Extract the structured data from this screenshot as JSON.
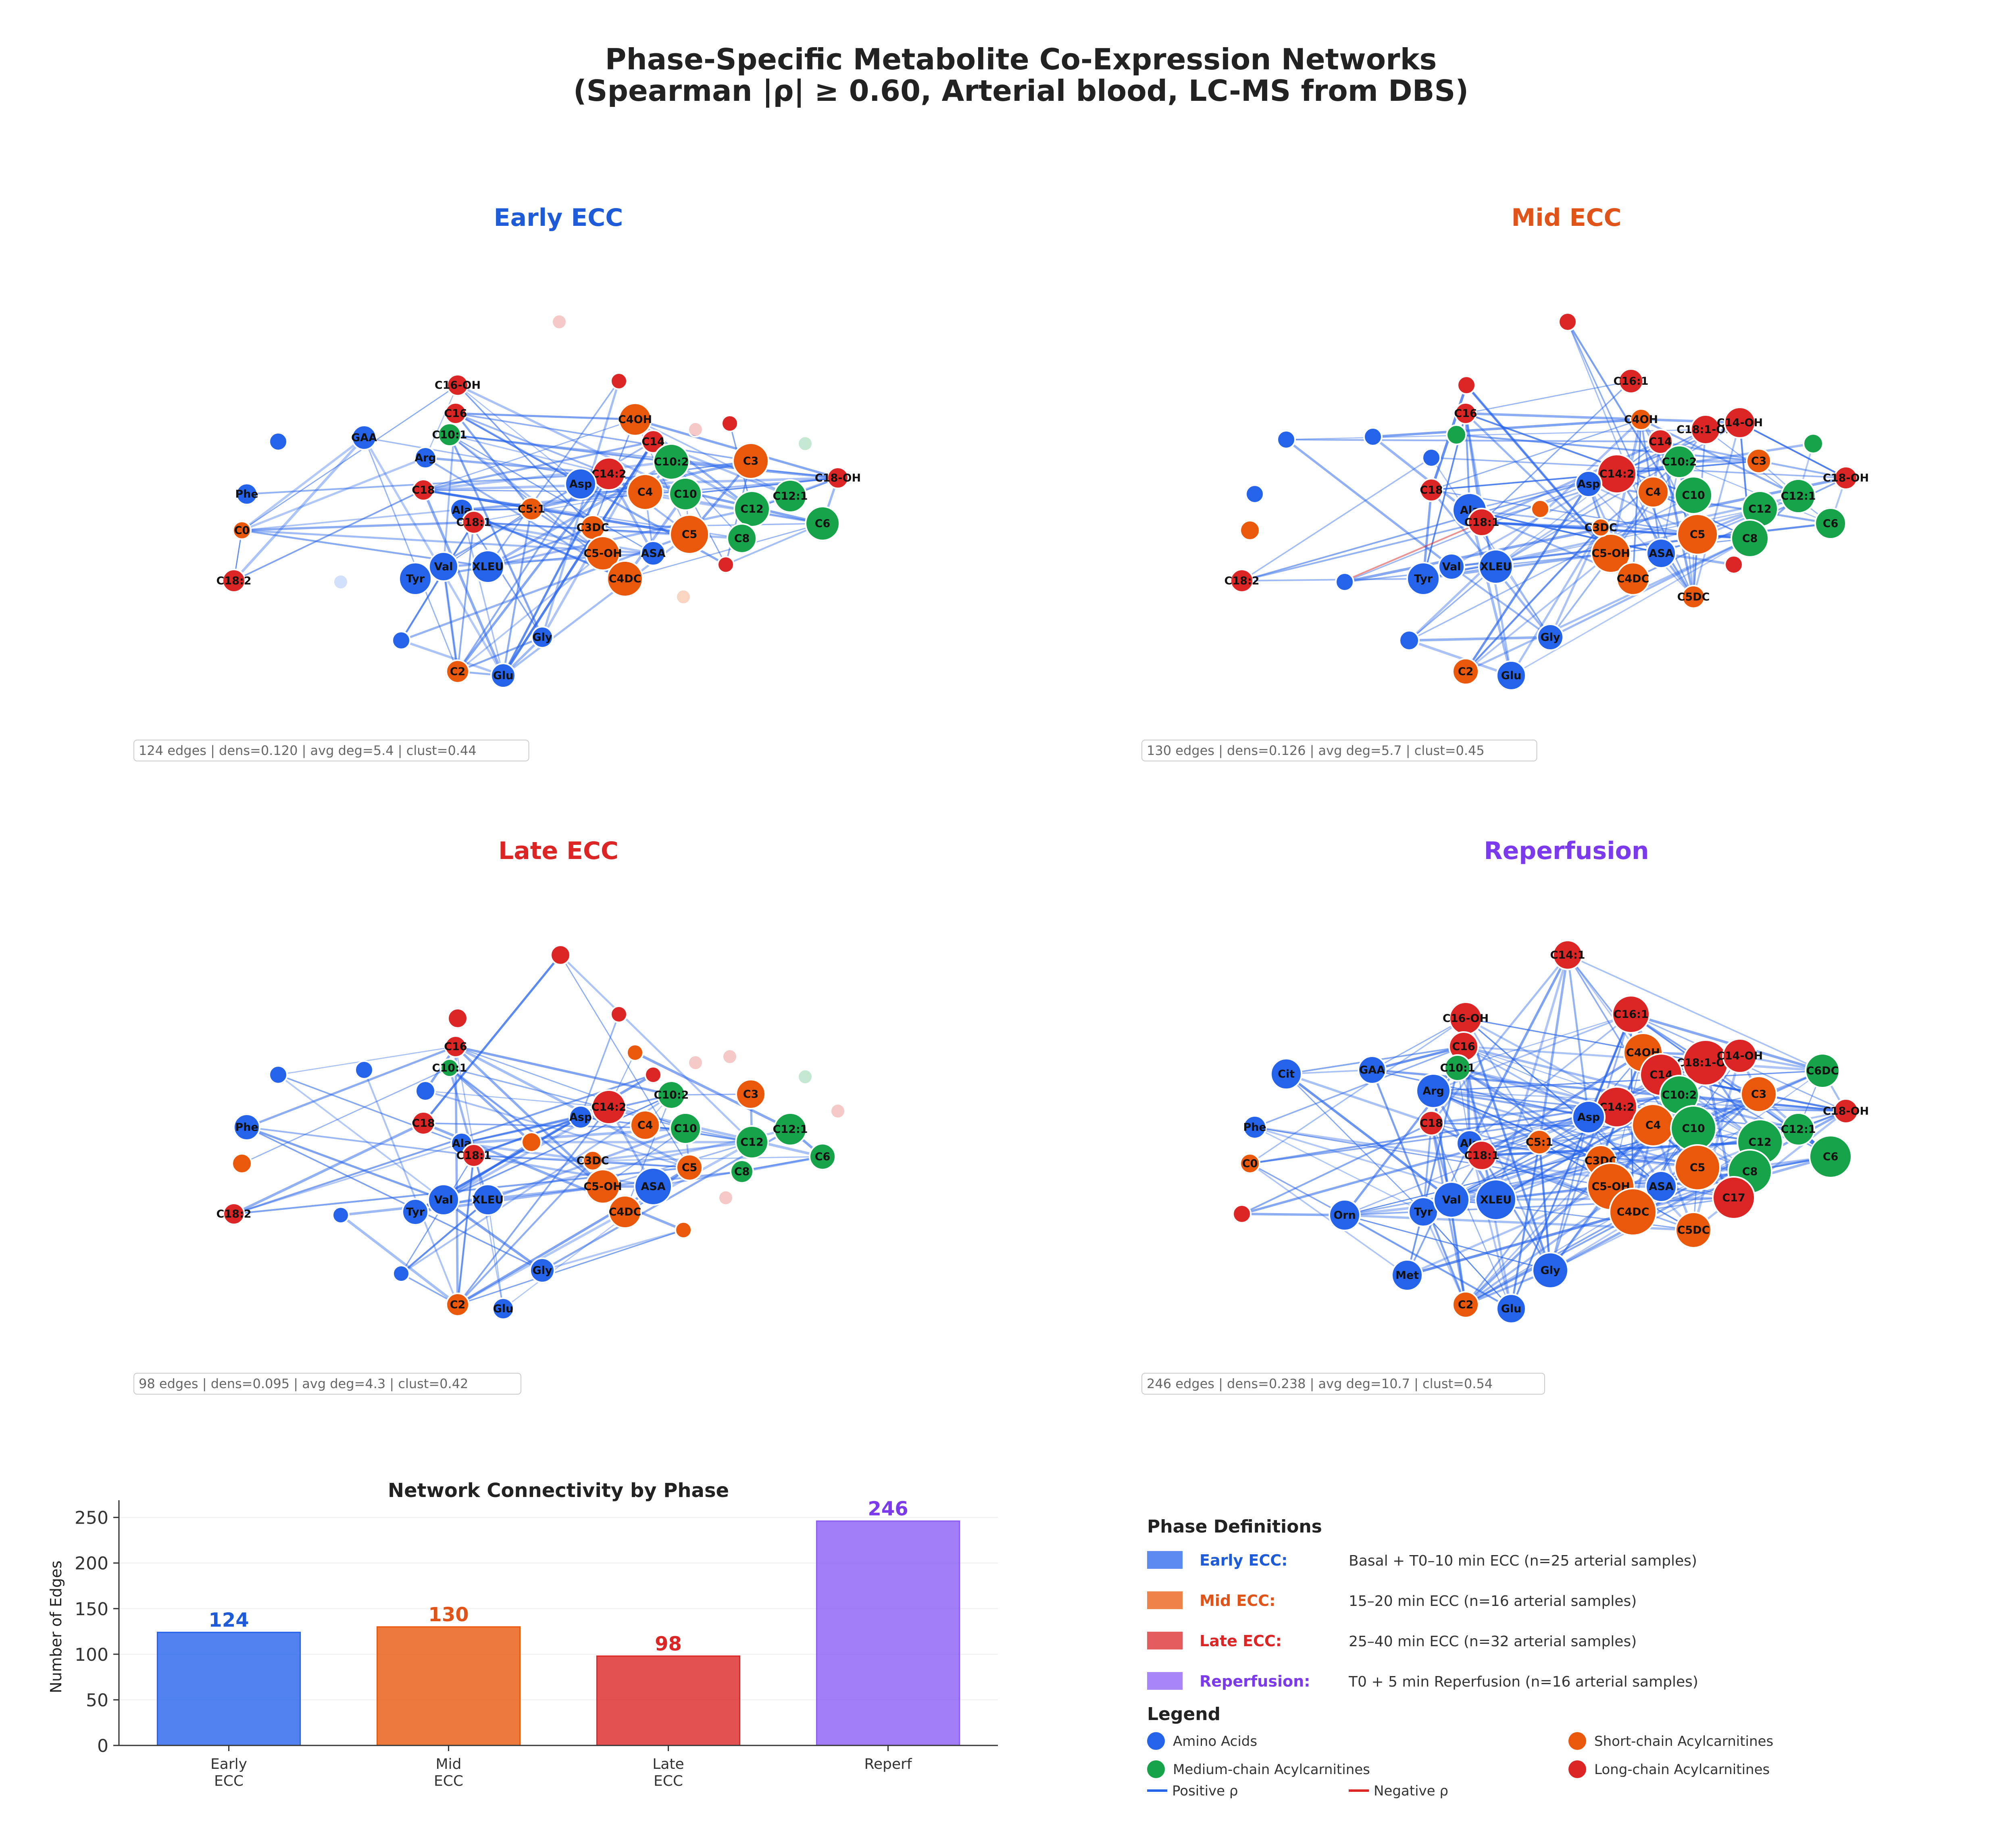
{
  "title": {
    "line1": "Phase-Specific Metabolite Co-Expression Networks",
    "line2": "(Spearman |ρ| ≥ 0.60, Arterial blood, LC-MS from DBS)"
  },
  "colors": {
    "amino": "#2563eb",
    "short": "#ea580c",
    "medium": "#16a34a",
    "long": "#dc2626",
    "positive_edge": "#2563eb",
    "negative_edge": "#dc2626",
    "early": "#1d5bd8",
    "mid": "#e0541a",
    "late": "#dc2626",
    "reperf": "#7c3aed"
  },
  "panels": [
    {
      "key": "early",
      "title": "Early ECC",
      "stats": "124 edges | dens=0.120 | avg deg=5.4 | clust=0.44"
    },
    {
      "key": "mid",
      "title": "Mid ECC",
      "stats": "130 edges | dens=0.126 | avg deg=5.7 | clust=0.45"
    },
    {
      "key": "late",
      "title": "Late ECC",
      "stats": "98 edges | dens=0.095 | avg deg=4.3 | clust=0.42"
    },
    {
      "key": "reperf",
      "title": "Reperfusion",
      "stats": "246 edges | dens=0.238 | avg deg=10.7 | clust=0.54"
    }
  ],
  "node_labels": {
    "early": [
      "C16-OH",
      "C16",
      "C10:1",
      "GAA",
      "Arg",
      "Phe",
      "C0",
      "C18",
      "Ala",
      "C18:1",
      "C18:2",
      "Tyr",
      "Val",
      "XLEU",
      "Gly",
      "C2",
      "Glu",
      "C4OH",
      "C14",
      "C10:2",
      "C14:2",
      "Asp",
      "C4",
      "C10",
      "C3",
      "C18-OH",
      "C12",
      "C12:1",
      "C6",
      "C8",
      "C5",
      "C3DC",
      "C5:1",
      "C5-OH",
      "ASA",
      "C4DC"
    ],
    "mid": [
      "C16:1",
      "C16",
      "C4OH",
      "C18:1-OH",
      "C14-OH",
      "C14",
      "C10:2",
      "C3",
      "C18-OH",
      "C14:2",
      "Asp",
      "C4",
      "C10",
      "C12",
      "C12:1",
      "C6",
      "C8",
      "C5",
      "ASA",
      "C5-OH",
      "C4DC",
      "C3DC",
      "C5DC",
      "C18",
      "Ala",
      "C18:1",
      "C18:2",
      "Tyr",
      "Val",
      "XLEU",
      "Gly",
      "C2",
      "Glu"
    ],
    "late": [
      "C16",
      "C10:1",
      "C18",
      "Phe",
      "Ala",
      "C18:1",
      "C18:2",
      "Tyr",
      "Val",
      "XLEU",
      "Gly",
      "C2",
      "Glu",
      "Asp",
      "C14:2",
      "C10:2",
      "C3",
      "C4",
      "C10",
      "C12:1",
      "C12",
      "C6",
      "C5",
      "C8",
      "C3DC",
      "C5-OH",
      "ASA",
      "C4DC"
    ],
    "reperf": [
      "C14:1",
      "C16-OH",
      "C16",
      "C16:1",
      "C4OH",
      "C18:1-OH",
      "C14-OH",
      "C14",
      "C6DC",
      "C10:1",
      "Cit",
      "GAA",
      "Arg",
      "C10:2",
      "C3",
      "C14:2",
      "Asp",
      "C18-OH",
      "Phe",
      "C18",
      "C4",
      "C10",
      "C12:1",
      "C12",
      "C6",
      "C0",
      "Ala",
      "C18:1",
      "C5:1",
      "C3DC",
      "C5",
      "C8",
      "C5-OH",
      "ASA",
      "C17",
      "Orn",
      "Tyr",
      "Val",
      "XLEU",
      "C4DC",
      "C5DC",
      "Met",
      "Gly",
      "C2",
      "Glu"
    ]
  },
  "legend": {
    "phase_title": "Phase Definitions",
    "phases": [
      {
        "name": "Early ECC:",
        "desc": "Basal + T0–10 min ECC  (n=25 arterial samples)"
      },
      {
        "name": "Mid ECC:",
        "desc": "15–20 min ECC  (n=16 arterial samples)"
      },
      {
        "name": "Late ECC:",
        "desc": "25–40 min ECC  (n=32 arterial samples)"
      },
      {
        "name": "Reperfusion:",
        "desc": "T0 + 5 min Reperfusion  (n=16 arterial samples)"
      }
    ],
    "legend_title": "Legend",
    "classes": [
      "Amino Acids",
      "Short-chain Acylcarnitines",
      "Medium-chain Acylcarnitines",
      "Long-chain Acylcarnitines"
    ],
    "edges": [
      "Positive ρ",
      "Negative ρ"
    ]
  },
  "chart_data": {
    "type": "bar",
    "title": "Network Connectivity by Phase",
    "categories": [
      "Early\nECC",
      "Mid\nECC",
      "Late\nECC",
      "Reperf"
    ],
    "values": [
      124,
      130,
      98,
      246
    ],
    "ylabel": "Number of Edges",
    "xlabel": "",
    "ylim": [
      0,
      260
    ],
    "yticks": [
      0,
      50,
      100,
      150,
      200,
      250
    ],
    "grid": true
  }
}
